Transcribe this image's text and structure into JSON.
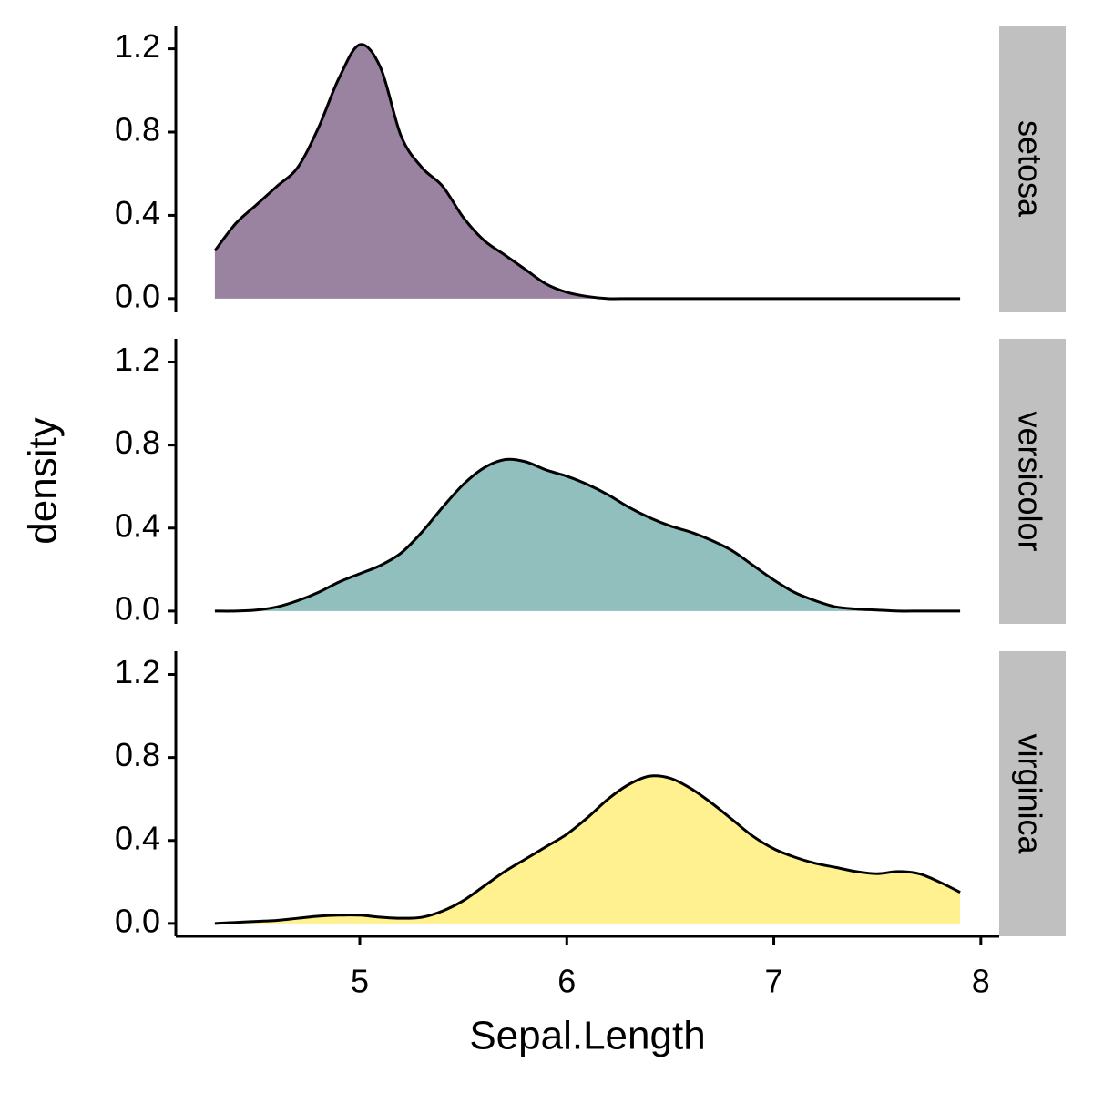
{
  "chart_data": {
    "type": "area",
    "xlabel": "Sepal.Length",
    "ylabel": "density",
    "x": [
      4.3,
      4.4,
      4.5,
      4.6,
      4.7,
      4.8,
      4.9,
      5.0,
      5.1,
      5.2,
      5.3,
      5.4,
      5.5,
      5.6,
      5.7,
      5.8,
      5.9,
      6.0,
      6.1,
      6.2,
      6.3,
      6.4,
      6.5,
      6.6,
      6.7,
      6.8,
      6.9,
      7.0,
      7.1,
      7.2,
      7.3,
      7.4,
      7.5,
      7.6,
      7.7,
      7.8,
      7.9
    ],
    "series": [
      {
        "name": "setosa",
        "color": "#9a82a1",
        "values": [
          0.23,
          0.36,
          0.45,
          0.54,
          0.63,
          0.82,
          1.06,
          1.22,
          1.11,
          0.78,
          0.63,
          0.54,
          0.39,
          0.28,
          0.21,
          0.14,
          0.07,
          0.03,
          0.01,
          0,
          0,
          0,
          0,
          0,
          0,
          0,
          0,
          0,
          0,
          0,
          0,
          0,
          0,
          0,
          0,
          0,
          0
        ]
      },
      {
        "name": "versicolor",
        "color": "#90bfbe",
        "values": [
          0,
          0,
          0.005,
          0.02,
          0.05,
          0.09,
          0.14,
          0.18,
          0.22,
          0.28,
          0.38,
          0.5,
          0.61,
          0.69,
          0.73,
          0.72,
          0.68,
          0.65,
          0.61,
          0.56,
          0.5,
          0.45,
          0.41,
          0.38,
          0.34,
          0.29,
          0.22,
          0.15,
          0.09,
          0.05,
          0.02,
          0.01,
          0.005,
          0,
          0,
          0,
          0
        ]
      },
      {
        "name": "virginica",
        "color": "#fff18f",
        "values": [
          0,
          0.005,
          0.01,
          0.015,
          0.025,
          0.035,
          0.04,
          0.04,
          0.03,
          0.025,
          0.03,
          0.06,
          0.11,
          0.18,
          0.25,
          0.31,
          0.37,
          0.43,
          0.51,
          0.6,
          0.67,
          0.71,
          0.7,
          0.65,
          0.58,
          0.5,
          0.42,
          0.36,
          0.32,
          0.29,
          0.27,
          0.25,
          0.24,
          0.25,
          0.24,
          0.2,
          0.15
        ]
      }
    ],
    "xlim": [
      4.12,
      8.08
    ],
    "xticks": [
      5,
      6,
      7,
      8
    ],
    "ylim": [
      -0.062,
      1.312
    ],
    "yticks": [
      {
        "value": 0,
        "label": "0.0"
      },
      0.4,
      0.8,
      1.2
    ]
  }
}
